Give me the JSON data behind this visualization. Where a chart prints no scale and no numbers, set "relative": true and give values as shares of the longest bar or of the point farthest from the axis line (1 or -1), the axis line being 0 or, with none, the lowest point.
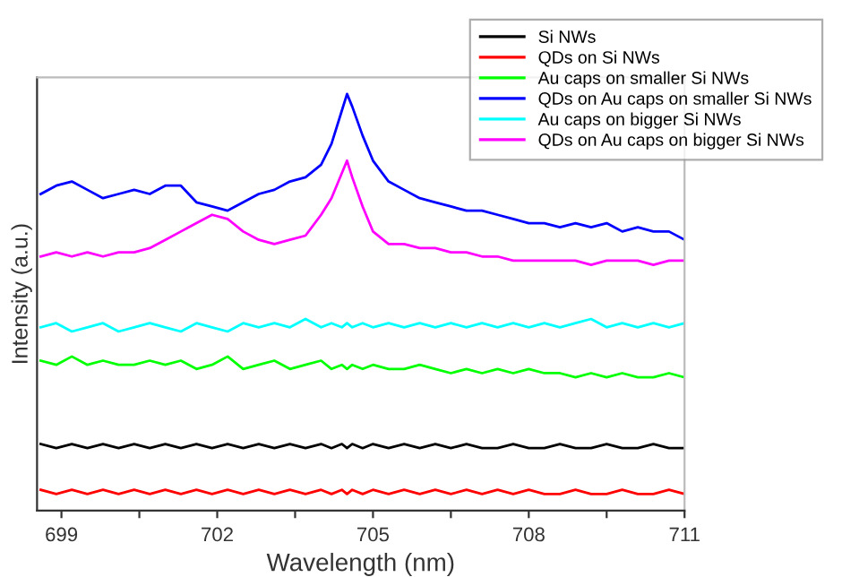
{
  "chart_data": {
    "type": "line",
    "relative": true,
    "xlabel": "Wavelength (nm)",
    "ylabel": "Intensity (a.u.)",
    "xlim": [
      698.53,
      711
    ],
    "xticks": [
      699,
      {
        "value": 700.5,
        "label": null
      },
      702,
      {
        "value": 703.5,
        "label": null
      },
      705,
      {
        "value": 706.5,
        "label": null
      },
      708,
      {
        "value": 709.5,
        "label": null
      },
      711
    ],
    "x": [
      698.6,
      698.9,
      699.2,
      699.5,
      699.8,
      700.1,
      700.4,
      700.7,
      701.0,
      701.3,
      701.6,
      701.9,
      702.2,
      702.5,
      702.8,
      703.1,
      703.4,
      703.7,
      704.0,
      704.2,
      704.4,
      704.5,
      704.6,
      704.8,
      705.0,
      705.3,
      705.6,
      705.9,
      706.2,
      706.5,
      706.8,
      707.1,
      707.4,
      707.7,
      708.0,
      708.3,
      708.6,
      708.9,
      709.2,
      709.5,
      709.8,
      710.1,
      710.4,
      710.7,
      711.0
    ],
    "legend": "top right",
    "grid": false,
    "series": [
      {
        "name": "Si NWs",
        "color": "#000000",
        "values": [
          0.16,
          0.15,
          0.16,
          0.15,
          0.16,
          0.15,
          0.16,
          0.15,
          0.16,
          0.15,
          0.16,
          0.15,
          0.16,
          0.15,
          0.16,
          0.15,
          0.16,
          0.15,
          0.16,
          0.15,
          0.16,
          0.15,
          0.16,
          0.15,
          0.16,
          0.15,
          0.16,
          0.15,
          0.16,
          0.15,
          0.16,
          0.15,
          0.15,
          0.16,
          0.15,
          0.15,
          0.16,
          0.15,
          0.15,
          0.16,
          0.15,
          0.15,
          0.16,
          0.15,
          0.15
        ]
      },
      {
        "name": "QDs on Si NWs",
        "color": "#ff0000",
        "values": [
          0.05,
          0.04,
          0.05,
          0.04,
          0.05,
          0.04,
          0.05,
          0.04,
          0.05,
          0.04,
          0.05,
          0.04,
          0.05,
          0.04,
          0.05,
          0.04,
          0.05,
          0.04,
          0.05,
          0.04,
          0.05,
          0.04,
          0.05,
          0.04,
          0.05,
          0.04,
          0.05,
          0.04,
          0.05,
          0.04,
          0.05,
          0.04,
          0.05,
          0.04,
          0.05,
          0.04,
          0.04,
          0.05,
          0.04,
          0.04,
          0.05,
          0.04,
          0.04,
          0.05,
          0.04
        ]
      },
      {
        "name": "Au caps on smaller Si NWs",
        "color": "#00ff00",
        "values": [
          0.36,
          0.35,
          0.37,
          0.35,
          0.36,
          0.35,
          0.35,
          0.36,
          0.35,
          0.36,
          0.34,
          0.35,
          0.37,
          0.34,
          0.35,
          0.36,
          0.34,
          0.35,
          0.36,
          0.34,
          0.35,
          0.34,
          0.35,
          0.34,
          0.35,
          0.34,
          0.34,
          0.35,
          0.34,
          0.33,
          0.34,
          0.33,
          0.34,
          0.33,
          0.34,
          0.33,
          0.33,
          0.32,
          0.33,
          0.32,
          0.33,
          0.32,
          0.32,
          0.33,
          0.32
        ]
      },
      {
        "name": "QDs on Au caps on smaller Si NWs",
        "color": "#0000ff",
        "values": [
          0.76,
          0.78,
          0.79,
          0.77,
          0.75,
          0.76,
          0.77,
          0.76,
          0.78,
          0.78,
          0.74,
          0.73,
          0.72,
          0.74,
          0.76,
          0.77,
          0.79,
          0.8,
          0.83,
          0.88,
          0.96,
          1.0,
          0.97,
          0.9,
          0.84,
          0.79,
          0.77,
          0.75,
          0.74,
          0.73,
          0.72,
          0.72,
          0.71,
          0.7,
          0.69,
          0.69,
          0.68,
          0.69,
          0.68,
          0.69,
          0.67,
          0.68,
          0.67,
          0.67,
          0.65
        ]
      },
      {
        "name": "Au caps on bigger Si NWs",
        "color": "#00ffff",
        "values": [
          0.44,
          0.45,
          0.43,
          0.44,
          0.45,
          0.43,
          0.44,
          0.45,
          0.44,
          0.43,
          0.45,
          0.44,
          0.43,
          0.45,
          0.44,
          0.45,
          0.44,
          0.46,
          0.44,
          0.45,
          0.44,
          0.45,
          0.44,
          0.45,
          0.44,
          0.45,
          0.44,
          0.45,
          0.44,
          0.45,
          0.44,
          0.45,
          0.44,
          0.45,
          0.44,
          0.45,
          0.44,
          0.45,
          0.46,
          0.44,
          0.45,
          0.44,
          0.45,
          0.44,
          0.45
        ]
      },
      {
        "name": "QDs on Au caps on bigger Si NWs",
        "color": "#ff00ff",
        "values": [
          0.61,
          0.62,
          0.61,
          0.62,
          0.61,
          0.62,
          0.62,
          0.63,
          0.65,
          0.67,
          0.69,
          0.71,
          0.7,
          0.67,
          0.65,
          0.64,
          0.65,
          0.66,
          0.71,
          0.75,
          0.81,
          0.84,
          0.8,
          0.73,
          0.67,
          0.64,
          0.64,
          0.63,
          0.63,
          0.62,
          0.62,
          0.61,
          0.61,
          0.6,
          0.6,
          0.6,
          0.6,
          0.6,
          0.59,
          0.6,
          0.6,
          0.6,
          0.59,
          0.6,
          0.6
        ]
      }
    ]
  }
}
